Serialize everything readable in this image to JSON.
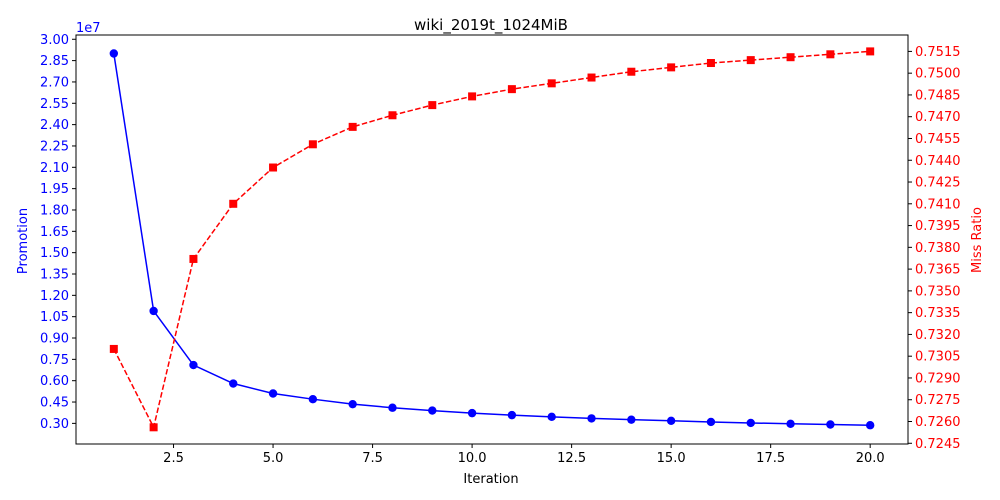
{
  "chart_data": {
    "type": "line",
    "title": "wiki_2019t_1024MiB",
    "xlabel": "Iteration",
    "x_ticks": [
      "2.5",
      "5.0",
      "7.5",
      "10.0",
      "12.5",
      "15.0",
      "17.5",
      "20.0"
    ],
    "x_tick_values": [
      2.5,
      5.0,
      7.5,
      10.0,
      12.5,
      15.0,
      17.5,
      20.0
    ],
    "xlim": [
      0.05,
      20.95
    ],
    "x": [
      1,
      2,
      3,
      4,
      5,
      6,
      7,
      8,
      9,
      10,
      11,
      12,
      13,
      14,
      15,
      16,
      17,
      18,
      19,
      20
    ],
    "left_axis": {
      "label": "Promotion",
      "color": "#0000ff",
      "offset_text": "1e7",
      "ticks": [
        "0.30",
        "0.45",
        "0.60",
        "0.75",
        "0.90",
        "1.05",
        "1.20",
        "1.35",
        "1.50",
        "1.65",
        "1.80",
        "1.95",
        "2.10",
        "2.25",
        "2.40",
        "2.55",
        "2.70",
        "2.85",
        "3.00"
      ],
      "tick_values": [
        0.3,
        0.45,
        0.6,
        0.75,
        0.9,
        1.05,
        1.2,
        1.35,
        1.5,
        1.65,
        1.8,
        1.95,
        2.1,
        2.25,
        2.4,
        2.55,
        2.7,
        2.85,
        3.0
      ],
      "ylim": [
        0.155,
        3.03
      ]
    },
    "right_axis": {
      "label": "Miss Ratio",
      "color": "#ff0000",
      "ticks": [
        "0.7245",
        "0.7260",
        "0.7275",
        "0.7290",
        "0.7305",
        "0.7320",
        "0.7335",
        "0.7350",
        "0.7365",
        "0.7380",
        "0.7395",
        "0.7410",
        "0.7425",
        "0.7440",
        "0.7455",
        "0.7470",
        "0.7485",
        "0.7500",
        "0.7515"
      ],
      "tick_values": [
        0.7245,
        0.726,
        0.7275,
        0.729,
        0.7305,
        0.732,
        0.7335,
        0.735,
        0.7365,
        0.738,
        0.7395,
        0.741,
        0.7425,
        0.744,
        0.7455,
        0.747,
        0.7485,
        0.75,
        0.7515
      ],
      "ylim": [
        0.72445,
        0.75263
      ]
    },
    "series": [
      {
        "axis": "left",
        "color": "#0000ff",
        "line_style": "solid",
        "marker": "circle",
        "values": [
          2.9,
          1.09,
          0.71,
          0.58,
          0.51,
          0.47,
          0.435,
          0.41,
          0.39,
          0.372,
          0.358,
          0.346,
          0.335,
          0.326,
          0.318,
          0.31,
          0.303,
          0.297,
          0.292,
          0.287
        ]
      },
      {
        "axis": "right",
        "color": "#ff0000",
        "line_style": "dashed",
        "marker": "square",
        "values": [
          0.731,
          0.7256,
          0.7372,
          0.741,
          0.7435,
          0.7451,
          0.7463,
          0.7471,
          0.7478,
          0.7484,
          0.7489,
          0.7493,
          0.7497,
          0.7501,
          0.7504,
          0.7507,
          0.7509,
          0.7511,
          0.7513,
          0.7515
        ]
      }
    ]
  }
}
